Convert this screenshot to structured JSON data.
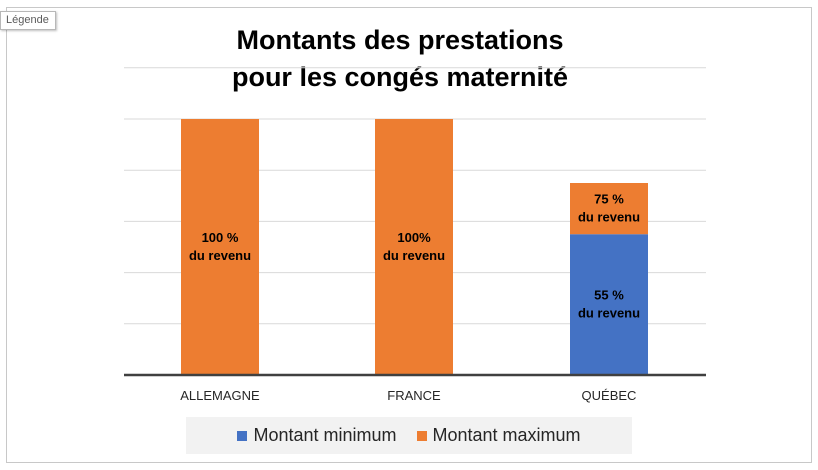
{
  "tag": {
    "label": "Légende"
  },
  "chart_data": {
    "type": "bar",
    "stacked": true,
    "title_lines": [
      "Montants des prestations",
      "pour les congés maternité"
    ],
    "categories": [
      "ALLEMAGNE",
      "FRANCE",
      "QUÉBEC"
    ],
    "series": [
      {
        "name": "Montant minimum",
        "color": "#4472c4",
        "values": [
          0,
          0,
          55
        ]
      },
      {
        "name": "Montant maximum",
        "color": "#ed7d31",
        "values": [
          100,
          100,
          20
        ]
      }
    ],
    "data_labels": [
      {
        "category": "ALLEMAGNE",
        "series": "Montant maximum",
        "lines": [
          "100 %",
          "du revenu"
        ]
      },
      {
        "category": "FRANCE",
        "series": "Montant maximum",
        "lines": [
          "100%",
          "du revenu"
        ]
      },
      {
        "category": "QUÉBEC",
        "series": "Montant minimum",
        "lines": [
          "55 %",
          "du revenu"
        ]
      },
      {
        "category": "QUÉBEC",
        "series": "Montant maximum",
        "lines": [
          "75 %",
          "du revenu"
        ]
      }
    ],
    "ylim": [
      0,
      100
    ],
    "gridlines": [
      20,
      40,
      60,
      80,
      100,
      120
    ],
    "grid": true,
    "y_axis_labels": false,
    "legend_position": "bottom"
  }
}
